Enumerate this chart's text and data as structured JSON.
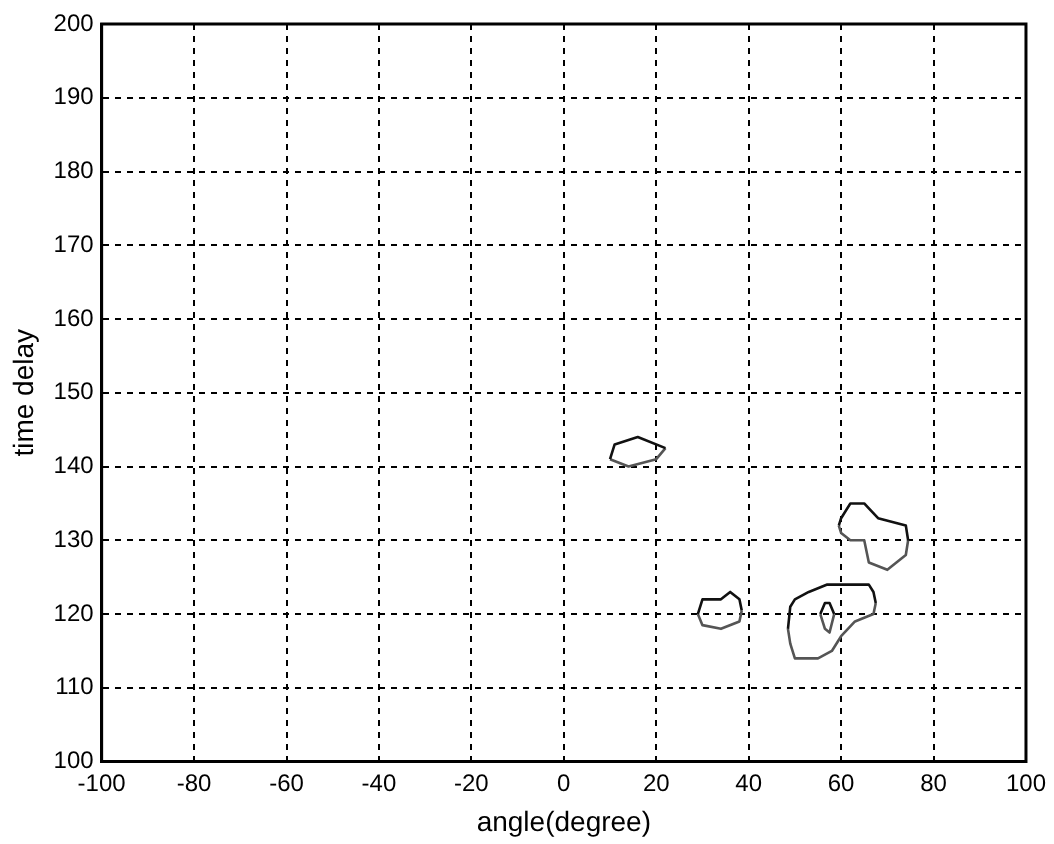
{
  "chart_data": {
    "type": "line",
    "xlabel": "angle(degree)",
    "ylabel": "time delay",
    "xlim": [
      -100,
      100
    ],
    "xticks": [
      -100,
      -80,
      -60,
      -40,
      -20,
      0,
      20,
      40,
      60,
      80,
      100
    ],
    "ylim": [
      100,
      200
    ],
    "yticks": [
      100,
      110,
      120,
      130,
      140,
      150,
      160,
      170,
      180,
      190,
      200
    ],
    "grid": true,
    "legend": false,
    "marker": "none",
    "line_style": "solid",
    "series": [
      {
        "color": "#111111",
        "x": [
          10,
          11,
          16,
          22
        ],
        "values": [
          141,
          143,
          144,
          142.5
        ]
      },
      {
        "color": "#555555",
        "x": [
          10,
          14,
          20,
          22
        ],
        "values": [
          141,
          140,
          141,
          142.5
        ]
      },
      {
        "color": "#111111",
        "x": [
          59.5,
          60,
          62,
          65,
          68,
          74,
          74.5
        ],
        "values": [
          132,
          133,
          135,
          135,
          133,
          132,
          130
        ]
      },
      {
        "color": "#555555",
        "x": [
          59.5,
          60,
          62,
          65,
          66,
          70,
          74,
          74.5
        ],
        "values": [
          132,
          131,
          130,
          130,
          127,
          126,
          128,
          130
        ]
      },
      {
        "color": "#111111",
        "x": [
          29,
          30,
          34,
          36,
          38,
          38.5
        ],
        "values": [
          120,
          122,
          122,
          123,
          122,
          120.5
        ]
      },
      {
        "color": "#555555",
        "x": [
          29,
          30,
          34,
          38,
          38.5
        ],
        "values": [
          120,
          118.5,
          118,
          119,
          120.5
        ]
      },
      {
        "color": "#111111",
        "x": [
          48.5,
          49,
          50,
          53,
          57,
          66,
          67,
          67.5
        ],
        "values": [
          118,
          121,
          122,
          123,
          124,
          124,
          123,
          121.5
        ]
      },
      {
        "color": "#555555",
        "x": [
          48.5,
          49,
          50,
          55,
          58,
          60,
          63,
          67,
          67.5
        ],
        "values": [
          118,
          116,
          114,
          114,
          115,
          117,
          119,
          120,
          121.5
        ]
      },
      {
        "color": "#111111",
        "x": [
          55.5,
          56.5,
          57.5,
          58.5
        ],
        "values": [
          120,
          121.5,
          121.5,
          120
        ]
      },
      {
        "color": "#555555",
        "x": [
          55.5,
          56.5,
          57.5,
          58.5
        ],
        "values": [
          120,
          118,
          117.5,
          120
        ]
      }
    ]
  }
}
